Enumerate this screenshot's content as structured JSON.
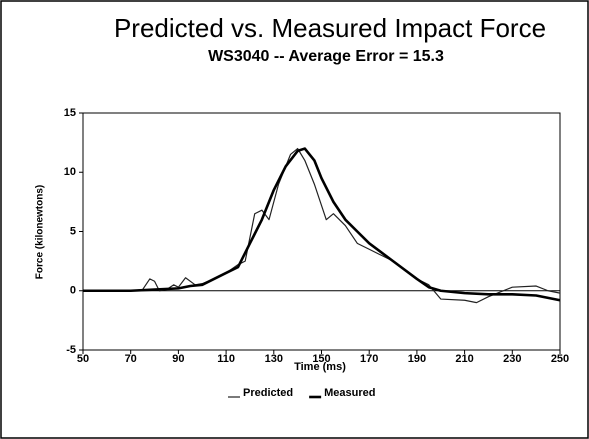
{
  "chart_data": {
    "type": "line",
    "title": "Predicted vs. Measured Impact Force",
    "subtitle": "WS3040 -- Average Error = 15.3",
    "xlabel": "Time (ms)",
    "ylabel": "Force (kilonewtons)",
    "xlim": [
      50,
      250
    ],
    "ylim": [
      -5,
      15
    ],
    "xticks": [
      50,
      70,
      90,
      110,
      130,
      150,
      170,
      190,
      210,
      230,
      250
    ],
    "yticks": [
      -5,
      0,
      5,
      10,
      15
    ],
    "legend": "bottom",
    "series": [
      {
        "name": "Predicted",
        "color": "#222222",
        "line_width": 1.2,
        "x": [
          50,
          70,
          75,
          78,
          80,
          82,
          85,
          88,
          90,
          93,
          97,
          100,
          105,
          110,
          115,
          118,
          122,
          125,
          128,
          132,
          137,
          140,
          143,
          147,
          152,
          155,
          160,
          165,
          170,
          180,
          190,
          195,
          200,
          210,
          215,
          220,
          230,
          240,
          245,
          250
        ],
        "values": [
          0,
          0,
          0.1,
          1,
          0.8,
          0,
          0.1,
          0.5,
          0.3,
          1.1,
          0.5,
          0.6,
          1,
          1.5,
          2.2,
          2.5,
          6.5,
          6.8,
          6,
          9,
          11.5,
          12,
          11,
          9,
          6,
          6.5,
          5.5,
          4,
          3.5,
          2.5,
          1,
          0.5,
          -0.7,
          -0.8,
          -1,
          -0.5,
          0.3,
          0.4,
          0,
          -0.2
        ]
      },
      {
        "name": "Measured",
        "color": "#000000",
        "line_width": 2.6,
        "x": [
          50,
          70,
          80,
          90,
          95,
          100,
          110,
          115,
          120,
          125,
          130,
          135,
          140,
          143,
          147,
          150,
          155,
          160,
          165,
          170,
          180,
          190,
          195,
          200,
          210,
          220,
          230,
          240,
          250
        ],
        "values": [
          0,
          0,
          0.1,
          0.2,
          0.4,
          0.5,
          1.5,
          2,
          4,
          6,
          8.5,
          10.5,
          11.8,
          12,
          11,
          9.5,
          7.5,
          6,
          5,
          4,
          2.5,
          1,
          0.3,
          0,
          -0.2,
          -0.3,
          -0.3,
          -0.4,
          -0.8
        ]
      }
    ]
  }
}
